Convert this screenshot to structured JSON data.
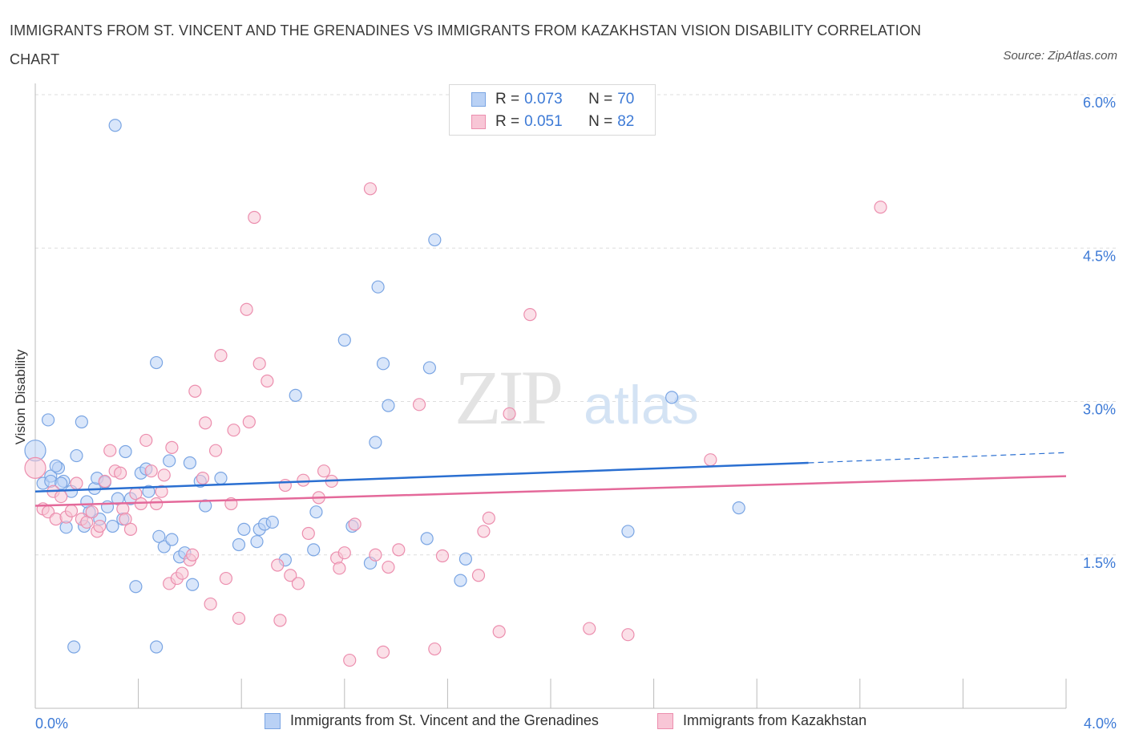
{
  "title": "IMMIGRANTS FROM ST. VINCENT AND THE GRENADINES VS IMMIGRANTS FROM KAZAKHSTAN VISION DISABILITY CORRELATION CHART",
  "source": "Source: ZipAtlas.com",
  "watermark": {
    "zip": "ZIP",
    "atlas": "atlas"
  },
  "legend": {
    "series1": {
      "r_label": "R = ",
      "r_value": "0.073",
      "n_label": "N = ",
      "n_value": "70"
    },
    "series2": {
      "r_label": "R = ",
      "r_value": "0.051",
      "n_label": "N = ",
      "n_value": "82"
    }
  },
  "colors": {
    "blue_fill": "#b9d1f5",
    "blue_stroke": "#7aa5e3",
    "blue_line": "#2a6fd1",
    "pink_fill": "#f8c6d6",
    "pink_stroke": "#ec8eae",
    "pink_line": "#e4699a",
    "tick_label": "#3d7ad6",
    "grid": "#dddddd"
  },
  "chart_data": {
    "type": "scatter",
    "xlabel": "",
    "ylabel": "Vision Disability",
    "xlim": [
      0.0,
      4.0
    ],
    "ylim": [
      0.0,
      6.0
    ],
    "x_tick_labels": [
      "0.0%",
      "4.0%"
    ],
    "y_ticks": [
      1.5,
      3.0,
      4.5,
      6.0
    ],
    "y_tick_labels": [
      "1.5%",
      "3.0%",
      "4.5%",
      "6.0%"
    ],
    "grid": true,
    "legend_position": "top-center",
    "series": [
      {
        "name": "Immigrants from St. Vincent and the Grenadines",
        "color": "blue",
        "trend": {
          "x": [
            0.0,
            3.0
          ],
          "y": [
            2.12,
            2.4
          ],
          "dashed_to": [
            4.0,
            2.5
          ]
        },
        "points": [
          [
            0.0,
            2.52
          ],
          [
            0.03,
            2.2
          ],
          [
            0.06,
            2.27
          ],
          [
            0.09,
            2.35
          ],
          [
            0.11,
            2.22
          ],
          [
            0.14,
            2.12
          ],
          [
            0.16,
            2.47
          ],
          [
            0.18,
            2.8
          ],
          [
            0.05,
            2.82
          ],
          [
            0.06,
            2.22
          ],
          [
            0.08,
            2.37
          ],
          [
            0.1,
            2.2
          ],
          [
            0.12,
            1.77
          ],
          [
            0.19,
            1.78
          ],
          [
            0.21,
            1.92
          ],
          [
            0.2,
            2.02
          ],
          [
            0.23,
            2.15
          ],
          [
            0.24,
            2.25
          ],
          [
            0.25,
            1.85
          ],
          [
            0.27,
            2.21
          ],
          [
            0.28,
            1.97
          ],
          [
            0.3,
            1.78
          ],
          [
            0.31,
            5.7
          ],
          [
            0.32,
            2.05
          ],
          [
            0.34,
            1.85
          ],
          [
            0.35,
            2.51
          ],
          [
            0.37,
            2.05
          ],
          [
            0.39,
            1.19
          ],
          [
            0.41,
            2.3
          ],
          [
            0.43,
            2.34
          ],
          [
            0.44,
            2.12
          ],
          [
            0.47,
            3.38
          ],
          [
            0.48,
            1.68
          ],
          [
            0.5,
            1.58
          ],
          [
            0.52,
            2.42
          ],
          [
            0.53,
            1.65
          ],
          [
            0.56,
            1.48
          ],
          [
            0.58,
            1.52
          ],
          [
            0.6,
            2.4
          ],
          [
            0.61,
            1.21
          ],
          [
            0.64,
            2.22
          ],
          [
            0.66,
            1.98
          ],
          [
            0.72,
            2.25
          ],
          [
            0.79,
            1.6
          ],
          [
            0.81,
            1.75
          ],
          [
            0.86,
            1.63
          ],
          [
            0.87,
            1.75
          ],
          [
            0.89,
            1.8
          ],
          [
            0.92,
            1.82
          ],
          [
            0.97,
            1.45
          ],
          [
            1.01,
            3.06
          ],
          [
            1.08,
            1.55
          ],
          [
            1.09,
            1.92
          ],
          [
            1.2,
            3.6
          ],
          [
            1.23,
            1.78
          ],
          [
            1.3,
            1.42
          ],
          [
            1.33,
            4.12
          ],
          [
            1.35,
            3.37
          ],
          [
            1.37,
            2.96
          ],
          [
            1.32,
            2.6
          ],
          [
            1.53,
            3.33
          ],
          [
            1.55,
            4.58
          ],
          [
            1.52,
            1.66
          ],
          [
            1.65,
            1.25
          ],
          [
            1.67,
            1.46
          ],
          [
            2.3,
            1.73
          ],
          [
            2.47,
            3.04
          ],
          [
            2.73,
            1.96
          ],
          [
            0.15,
            0.6
          ],
          [
            0.47,
            0.6
          ]
        ]
      },
      {
        "name": "Immigrants from Kazakhstan",
        "color": "pink",
        "trend": {
          "x": [
            0.0,
            4.0
          ],
          "y": [
            1.98,
            2.27
          ]
        },
        "points": [
          [
            0.0,
            2.35
          ],
          [
            0.03,
            1.95
          ],
          [
            0.05,
            1.92
          ],
          [
            0.07,
            2.12
          ],
          [
            0.08,
            1.85
          ],
          [
            0.1,
            2.07
          ],
          [
            0.12,
            1.87
          ],
          [
            0.14,
            1.93
          ],
          [
            0.16,
            2.2
          ],
          [
            0.18,
            1.85
          ],
          [
            0.2,
            1.82
          ],
          [
            0.22,
            1.92
          ],
          [
            0.24,
            1.73
          ],
          [
            0.25,
            1.78
          ],
          [
            0.27,
            2.22
          ],
          [
            0.29,
            2.52
          ],
          [
            0.31,
            2.32
          ],
          [
            0.33,
            2.3
          ],
          [
            0.34,
            1.95
          ],
          [
            0.35,
            1.85
          ],
          [
            0.37,
            1.75
          ],
          [
            0.39,
            2.1
          ],
          [
            0.41,
            2.0
          ],
          [
            0.43,
            2.62
          ],
          [
            0.45,
            2.32
          ],
          [
            0.47,
            2.0
          ],
          [
            0.49,
            2.12
          ],
          [
            0.5,
            2.28
          ],
          [
            0.52,
            1.22
          ],
          [
            0.53,
            2.55
          ],
          [
            0.55,
            1.27
          ],
          [
            0.57,
            1.32
          ],
          [
            0.6,
            1.45
          ],
          [
            0.61,
            1.5
          ],
          [
            0.62,
            3.1
          ],
          [
            0.65,
            2.25
          ],
          [
            0.66,
            2.79
          ],
          [
            0.68,
            1.02
          ],
          [
            0.7,
            2.52
          ],
          [
            0.72,
            3.45
          ],
          [
            0.74,
            1.27
          ],
          [
            0.76,
            2.0
          ],
          [
            0.77,
            2.72
          ],
          [
            0.79,
            0.88
          ],
          [
            0.82,
            3.9
          ],
          [
            0.83,
            2.8
          ],
          [
            0.85,
            4.8
          ],
          [
            0.87,
            3.37
          ],
          [
            0.9,
            3.2
          ],
          [
            0.94,
            1.4
          ],
          [
            0.95,
            0.86
          ],
          [
            0.97,
            2.18
          ],
          [
            0.99,
            1.3
          ],
          [
            1.02,
            1.22
          ],
          [
            1.04,
            2.23
          ],
          [
            1.06,
            1.71
          ],
          [
            1.1,
            2.06
          ],
          [
            1.12,
            2.32
          ],
          [
            1.15,
            2.22
          ],
          [
            1.17,
            1.47
          ],
          [
            1.18,
            1.37
          ],
          [
            1.2,
            1.52
          ],
          [
            1.22,
            0.47
          ],
          [
            1.24,
            1.8
          ],
          [
            1.3,
            5.08
          ],
          [
            1.32,
            1.5
          ],
          [
            1.35,
            0.55
          ],
          [
            1.37,
            1.38
          ],
          [
            1.41,
            1.55
          ],
          [
            1.49,
            2.97
          ],
          [
            1.55,
            0.58
          ],
          [
            1.58,
            1.49
          ],
          [
            1.72,
            1.3
          ],
          [
            1.74,
            1.73
          ],
          [
            1.76,
            1.86
          ],
          [
            1.8,
            0.75
          ],
          [
            1.84,
            2.88
          ],
          [
            1.92,
            3.85
          ],
          [
            2.15,
            0.78
          ],
          [
            2.3,
            0.72
          ],
          [
            2.62,
            2.43
          ],
          [
            3.28,
            4.9
          ]
        ]
      }
    ]
  }
}
